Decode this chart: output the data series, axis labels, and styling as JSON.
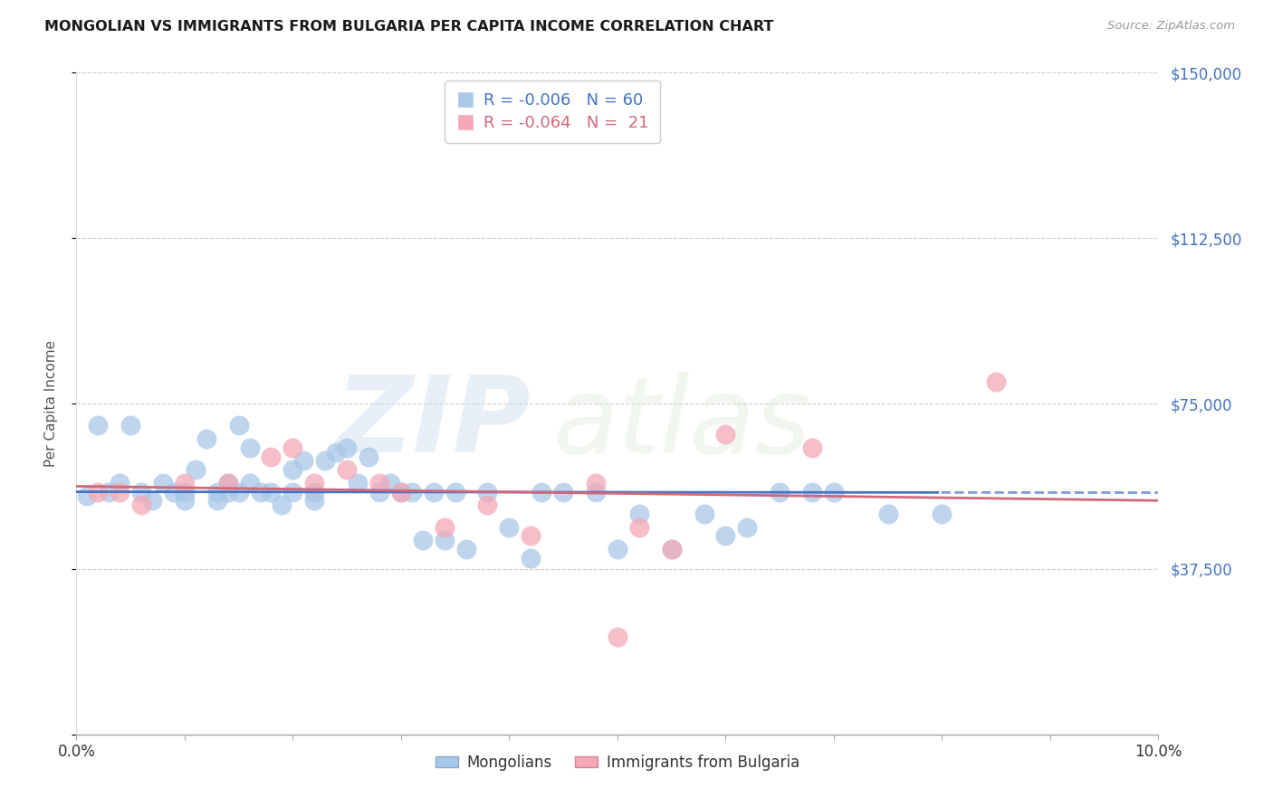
{
  "title": "MONGOLIAN VS IMMIGRANTS FROM BULGARIA PER CAPITA INCOME CORRELATION CHART",
  "source": "Source: ZipAtlas.com",
  "ylabel": "Per Capita Income",
  "watermark_zip": "ZIP",
  "watermark_atlas": "atlas",
  "legend_mongolians": "Mongolians",
  "legend_bulgaria": "Immigrants from Bulgaria",
  "R_mongolians": "-0.006",
  "N_mongolians": "60",
  "R_bulgaria": "-0.064",
  "N_bulgaria": "21",
  "mongolians_color": "#a8c8e8",
  "bulgaria_color": "#f4a8b8",
  "mongolians_line_color": "#4472c4",
  "bulgaria_line_color": "#d06878",
  "background_color": "#ffffff",
  "grid_color": "#c8c8c8",
  "ytick_vals": [
    0,
    37500,
    75000,
    112500,
    150000
  ],
  "ytick_labels": [
    "",
    "$37,500",
    "$75,000",
    "$112,500",
    "$150,000"
  ],
  "xlim": [
    0.0,
    0.1
  ],
  "ylim": [
    0,
    150000
  ],
  "mongolians_x": [
    0.001,
    0.002,
    0.003,
    0.004,
    0.005,
    0.006,
    0.007,
    0.008,
    0.009,
    0.01,
    0.01,
    0.011,
    0.012,
    0.013,
    0.013,
    0.014,
    0.014,
    0.015,
    0.015,
    0.016,
    0.016,
    0.017,
    0.018,
    0.019,
    0.02,
    0.02,
    0.021,
    0.022,
    0.022,
    0.023,
    0.024,
    0.025,
    0.026,
    0.027,
    0.028,
    0.029,
    0.03,
    0.031,
    0.032,
    0.033,
    0.034,
    0.035,
    0.036,
    0.038,
    0.04,
    0.042,
    0.043,
    0.045,
    0.048,
    0.05,
    0.052,
    0.055,
    0.058,
    0.06,
    0.062,
    0.065,
    0.068,
    0.07,
    0.075,
    0.08
  ],
  "mongolians_y": [
    54000,
    70000,
    55000,
    57000,
    70000,
    55000,
    53000,
    57000,
    55000,
    55000,
    53000,
    60000,
    67000,
    55000,
    53000,
    57000,
    55000,
    55000,
    70000,
    57000,
    65000,
    55000,
    55000,
    52000,
    60000,
    55000,
    62000,
    55000,
    53000,
    62000,
    64000,
    65000,
    57000,
    63000,
    55000,
    57000,
    55000,
    55000,
    44000,
    55000,
    44000,
    55000,
    42000,
    55000,
    47000,
    40000,
    55000,
    55000,
    55000,
    42000,
    50000,
    42000,
    50000,
    45000,
    47000,
    55000,
    55000,
    55000,
    50000,
    50000
  ],
  "bulgaria_x": [
    0.002,
    0.004,
    0.006,
    0.01,
    0.014,
    0.018,
    0.02,
    0.022,
    0.025,
    0.028,
    0.03,
    0.034,
    0.038,
    0.042,
    0.048,
    0.052,
    0.055,
    0.06,
    0.068,
    0.085,
    0.05
  ],
  "bulgaria_y": [
    55000,
    55000,
    52000,
    57000,
    57000,
    63000,
    65000,
    57000,
    60000,
    57000,
    55000,
    47000,
    52000,
    45000,
    57000,
    47000,
    42000,
    68000,
    65000,
    80000,
    22000
  ]
}
